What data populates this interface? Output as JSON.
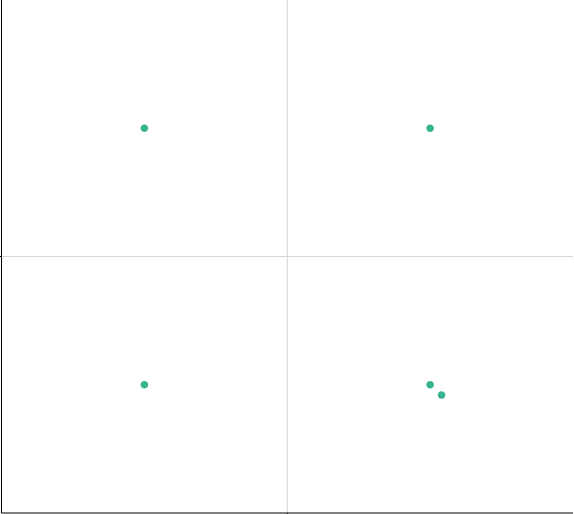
{
  "chart_data": {
    "type": "scatter",
    "title": "",
    "xlabel": "",
    "ylabel": "",
    "xlim": [
      0,
      4
    ],
    "ylim": [
      0,
      4
    ],
    "grid": true,
    "colors": {
      "point": "#35b28f",
      "grid": "#d6d6d6",
      "axis": "#000000"
    },
    "series": [
      {
        "points": [
          {
            "x": 1,
            "y": 3
          },
          {
            "x": 3,
            "y": 3
          },
          {
            "x": 1,
            "y": 1
          },
          {
            "x": 3,
            "y": 1
          },
          {
            "x": 3.08,
            "y": 0.92
          }
        ]
      }
    ]
  }
}
